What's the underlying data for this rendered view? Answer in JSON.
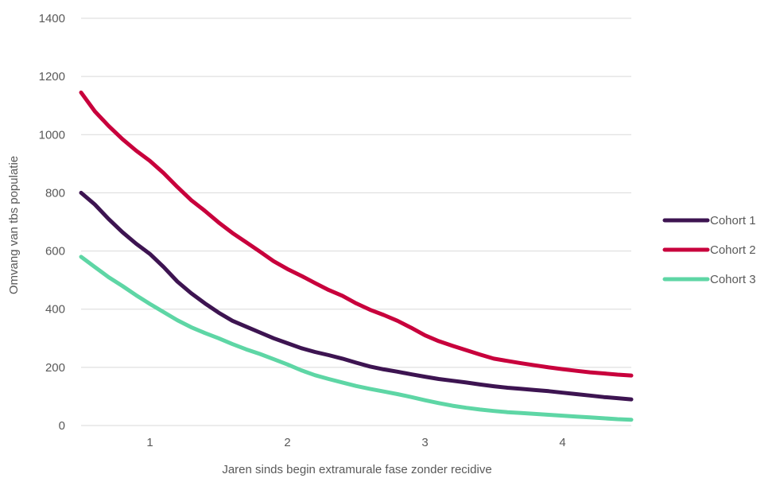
{
  "chart_data": {
    "type": "line",
    "title": "",
    "xlabel": "Jaren sinds begin extramurale fase zonder recidive",
    "ylabel": "Omvang van tbs populatie",
    "xlim": [
      0.5,
      4.5
    ],
    "ylim": [
      0,
      1400
    ],
    "x_ticks": [
      1,
      2,
      3,
      4
    ],
    "y_ticks": [
      0,
      200,
      400,
      600,
      800,
      1000,
      1200,
      1400
    ],
    "grid": true,
    "legend_position": "right",
    "x": [
      0.5,
      0.6,
      0.7,
      0.8,
      0.9,
      1.0,
      1.1,
      1.2,
      1.3,
      1.4,
      1.5,
      1.6,
      1.7,
      1.8,
      1.9,
      2.0,
      2.1,
      2.2,
      2.3,
      2.4,
      2.5,
      2.6,
      2.7,
      2.8,
      2.9,
      3.0,
      3.1,
      3.2,
      3.3,
      3.4,
      3.5,
      3.6,
      3.7,
      3.8,
      3.9,
      4.0,
      4.1,
      4.2,
      4.3,
      4.4,
      4.5
    ],
    "series": [
      {
        "name": "Cohort 1",
        "color": "#3d1451",
        "values": [
          800,
          760,
          710,
          665,
          625,
          590,
          545,
          495,
          455,
          420,
          388,
          360,
          340,
          320,
          300,
          283,
          266,
          253,
          242,
          230,
          216,
          203,
          193,
          185,
          176,
          168,
          160,
          154,
          148,
          141,
          135,
          130,
          126,
          122,
          118,
          113,
          108,
          103,
          98,
          94,
          90
        ]
      },
      {
        "name": "Cohort 2",
        "color": "#c8003c",
        "values": [
          1145,
          1080,
          1030,
          985,
          945,
          910,
          868,
          820,
          775,
          738,
          698,
          662,
          630,
          598,
          565,
          538,
          515,
          490,
          466,
          446,
          420,
          398,
          380,
          360,
          336,
          310,
          290,
          274,
          259,
          244,
          230,
          222,
          214,
          207,
          200,
          194,
          188,
          183,
          179,
          175,
          172
        ]
      },
      {
        "name": "Cohort 3",
        "color": "#5ed6a5",
        "values": [
          580,
          545,
          510,
          480,
          448,
          418,
          390,
          362,
          338,
          318,
          300,
          280,
          262,
          246,
          228,
          210,
          190,
          173,
          160,
          148,
          136,
          126,
          117,
          108,
          98,
          87,
          77,
          68,
          61,
          55,
          50,
          46,
          43,
          40,
          37,
          34,
          31,
          28,
          25,
          22,
          20
        ]
      }
    ]
  }
}
